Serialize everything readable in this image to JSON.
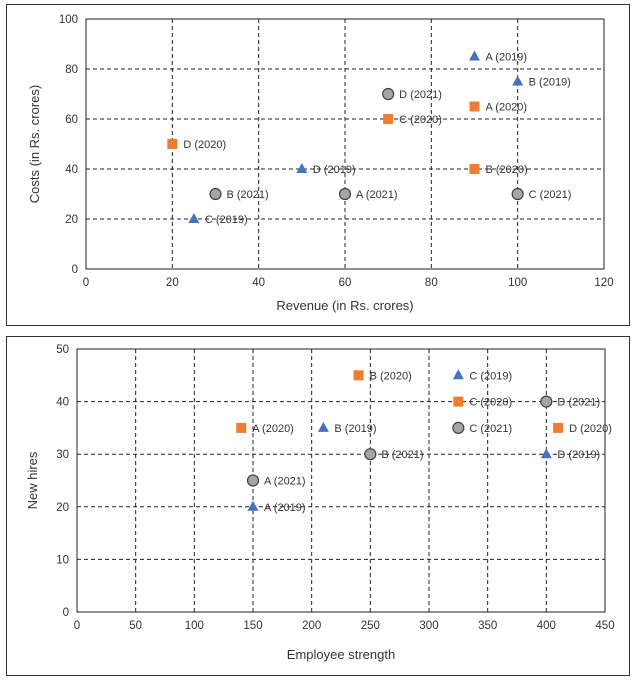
{
  "colors": {
    "2019": "#4472c4",
    "2020": "#ed7d31",
    "2021": "#a5a5a5"
  },
  "chart_data": [
    {
      "type": "scatter",
      "xlabel": "Revenue (in Rs. crores)",
      "ylabel": "Costs (in Rs. crores)",
      "xlim": [
        0,
        120
      ],
      "ylim": [
        0,
        100
      ],
      "xticks": [
        0,
        20,
        40,
        60,
        80,
        100,
        120
      ],
      "yticks": [
        0,
        20,
        40,
        60,
        80,
        100
      ],
      "grid": true,
      "points": [
        {
          "label": "A (2019)",
          "x": 90,
          "y": 85,
          "year": "2019",
          "marker": "triangle"
        },
        {
          "label": "B (2019)",
          "x": 100,
          "y": 75,
          "year": "2019",
          "marker": "triangle"
        },
        {
          "label": "D (2019)",
          "x": 50,
          "y": 40,
          "year": "2019",
          "marker": "triangle"
        },
        {
          "label": "C (2019)",
          "x": 25,
          "y": 20,
          "year": "2019",
          "marker": "triangle"
        },
        {
          "label": "A (2020)",
          "x": 90,
          "y": 65,
          "year": "2020",
          "marker": "square"
        },
        {
          "label": "C (2020)",
          "x": 70,
          "y": 60,
          "year": "2020",
          "marker": "square"
        },
        {
          "label": "D (2020)",
          "x": 20,
          "y": 50,
          "year": "2020",
          "marker": "square"
        },
        {
          "label": "B (2020)",
          "x": 90,
          "y": 40,
          "year": "2020",
          "marker": "square"
        },
        {
          "label": "D (2021)",
          "x": 70,
          "y": 70,
          "year": "2021",
          "marker": "circle"
        },
        {
          "label": "B (2021)",
          "x": 30,
          "y": 30,
          "year": "2021",
          "marker": "circle"
        },
        {
          "label": "A (2021)",
          "x": 60,
          "y": 30,
          "year": "2021",
          "marker": "circle"
        },
        {
          "label": "C (2021)",
          "x": 100,
          "y": 30,
          "year": "2021",
          "marker": "circle"
        }
      ]
    },
    {
      "type": "scatter",
      "xlabel": "Employee strength",
      "ylabel": "New hires",
      "xlim": [
        0,
        450
      ],
      "ylim": [
        0,
        50
      ],
      "xticks": [
        0,
        50,
        100,
        150,
        200,
        250,
        300,
        350,
        400,
        450
      ],
      "yticks": [
        0,
        10,
        20,
        30,
        40,
        50
      ],
      "grid": true,
      "points": [
        {
          "label": "C (2019)",
          "x": 325,
          "y": 45,
          "year": "2019",
          "marker": "triangle"
        },
        {
          "label": "B (2019)",
          "x": 210,
          "y": 35,
          "year": "2019",
          "marker": "triangle"
        },
        {
          "label": "D (2019)",
          "x": 400,
          "y": 30,
          "year": "2019",
          "marker": "triangle"
        },
        {
          "label": "A (2019)",
          "x": 150,
          "y": 20,
          "year": "2019",
          "marker": "triangle"
        },
        {
          "label": "B (2020)",
          "x": 240,
          "y": 45,
          "year": "2020",
          "marker": "square"
        },
        {
          "label": "C (2020)",
          "x": 325,
          "y": 40,
          "year": "2020",
          "marker": "square"
        },
        {
          "label": "A (2020)",
          "x": 140,
          "y": 35,
          "year": "2020",
          "marker": "square"
        },
        {
          "label": "D (2020)",
          "x": 410,
          "y": 35,
          "year": "2020",
          "marker": "square"
        },
        {
          "label": "D (2021)",
          "x": 400,
          "y": 40,
          "year": "2021",
          "marker": "circle"
        },
        {
          "label": "C (2021)",
          "x": 325,
          "y": 35,
          "year": "2021",
          "marker": "circle"
        },
        {
          "label": "B (2021)",
          "x": 250,
          "y": 30,
          "year": "2021",
          "marker": "circle"
        },
        {
          "label": "A (2021)",
          "x": 150,
          "y": 25,
          "year": "2021",
          "marker": "circle"
        }
      ]
    }
  ]
}
